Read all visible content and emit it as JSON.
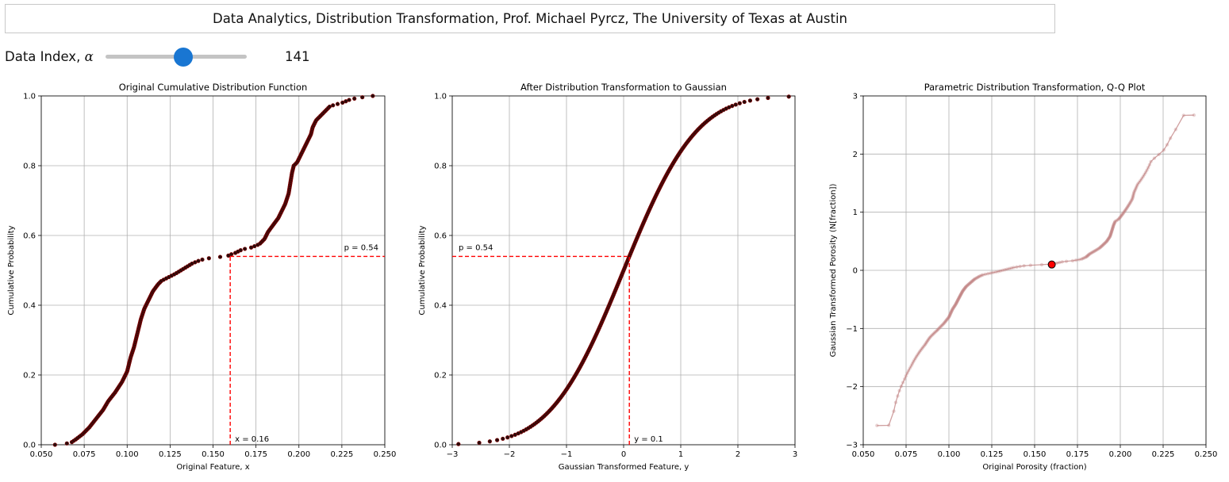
{
  "header": {
    "title": "Data Analytics, Distribution Transformation, Prof. Michael Pyrcz, The University of Texas at Austin"
  },
  "slider": {
    "label": "Data Index, ",
    "symbol": "α",
    "value": "141",
    "fraction": 0.55
  },
  "colors": {
    "points": "#2a0a0a",
    "points_edge": "#8b0000",
    "reference_line": "#ff0000",
    "qq_line": "#c08080",
    "qq_marker": "#ff0000",
    "slider_accent": "#1976d2"
  },
  "chart_data": [
    {
      "type": "scatter",
      "title": "Original Cumulative Distribution Function",
      "xlabel": "Original Feature, x",
      "ylabel": "Cumulative Probability",
      "xlim": [
        0.05,
        0.25
      ],
      "ylim": [
        0.0,
        1.0
      ],
      "xticks": [
        "0.050",
        "0.075",
        "0.100",
        "0.125",
        "0.150",
        "0.175",
        "0.200",
        "0.225",
        "0.250"
      ],
      "yticks": [
        "0.0",
        "0.2",
        "0.4",
        "0.6",
        "0.8",
        "1.0"
      ],
      "grid": true,
      "curve_x": [
        0.058,
        0.067,
        0.07,
        0.074,
        0.078,
        0.082,
        0.086,
        0.089,
        0.093,
        0.097,
        0.1,
        0.102,
        0.104,
        0.106,
        0.108,
        0.11,
        0.112,
        0.115,
        0.118,
        0.12,
        0.124,
        0.128,
        0.133,
        0.138,
        0.143,
        0.148,
        0.153,
        0.158,
        0.16,
        0.163,
        0.167,
        0.172,
        0.177,
        0.18,
        0.182,
        0.185,
        0.188,
        0.19,
        0.192,
        0.194,
        0.195,
        0.196,
        0.197,
        0.199,
        0.201,
        0.203,
        0.205,
        0.207,
        0.208,
        0.21,
        0.212,
        0.214,
        0.216,
        0.218,
        0.221,
        0.225,
        0.23,
        0.235,
        0.24,
        0.243
      ],
      "curve_y": [
        0.0,
        0.005,
        0.015,
        0.03,
        0.05,
        0.075,
        0.1,
        0.125,
        0.15,
        0.18,
        0.21,
        0.25,
        0.28,
        0.32,
        0.36,
        0.39,
        0.41,
        0.44,
        0.46,
        0.47,
        0.48,
        0.49,
        0.505,
        0.52,
        0.53,
        0.535,
        0.538,
        0.54,
        0.545,
        0.55,
        0.56,
        0.565,
        0.575,
        0.59,
        0.61,
        0.63,
        0.65,
        0.67,
        0.69,
        0.72,
        0.75,
        0.78,
        0.8,
        0.81,
        0.83,
        0.85,
        0.87,
        0.89,
        0.91,
        0.93,
        0.94,
        0.95,
        0.96,
        0.97,
        0.975,
        0.98,
        0.99,
        0.995,
        0.998,
        1.0
      ],
      "reference_lines": {
        "x": 0.16,
        "p": 0.54
      },
      "annotations": {
        "x_label": "x = 0.16",
        "p_label": "p = 0.54"
      }
    },
    {
      "type": "scatter",
      "title": "After Distribution Transformation to Gaussian",
      "xlabel": "Gaussian Transformed Feature, y",
      "ylabel": "Cumulative Probability",
      "xlim": [
        -3,
        3
      ],
      "ylim": [
        0.0,
        1.0
      ],
      "xticks": [
        "−3",
        "−2",
        "−1",
        "0",
        "1",
        "2",
        "3"
      ],
      "yticks": [
        "0.0",
        "0.2",
        "0.4",
        "0.6",
        "0.8",
        "1.0"
      ],
      "grid": true,
      "curve": "normal_cdf",
      "curve_range": [
        -2.67,
        2.67
      ],
      "reference_lines": {
        "x": 0.1,
        "p": 0.54
      },
      "annotations": {
        "x_label": "y = 0.1",
        "p_label": "p = 0.54"
      }
    },
    {
      "type": "line",
      "title": "Parametric Distribution Transformation, Q-Q Plot",
      "xlabel": "Original Porosity (fraction)",
      "ylabel": "Gaussian Transformed Porosity (N[fraction])",
      "xlim": [
        0.05,
        0.25
      ],
      "ylim": [
        -3,
        3
      ],
      "xticks": [
        "0.050",
        "0.075",
        "0.100",
        "0.125",
        "0.150",
        "0.175",
        "0.200",
        "0.225",
        "0.250"
      ],
      "yticks": [
        "−3",
        "−2",
        "−1",
        "0",
        "1",
        "2",
        "3"
      ],
      "grid": true,
      "derived_from": "chart_data.0",
      "highlight": {
        "x": 0.16,
        "y": 0.1
      }
    }
  ]
}
